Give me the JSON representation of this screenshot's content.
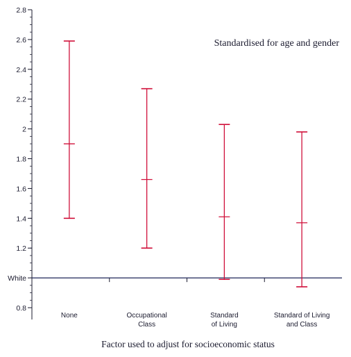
{
  "chart_data": {
    "type": "errorbar",
    "title": "",
    "annotation": "Standardised for age and gender",
    "xlabel": "Factor used to adjust for socioeconomic status",
    "ylabel": "",
    "ylim": [
      0.8,
      2.8
    ],
    "y_ticks": [
      {
        "value": 0.8,
        "label": "0.8"
      },
      {
        "value": 1.0,
        "label": "White"
      },
      {
        "value": 1.2,
        "label": "1.2"
      },
      {
        "value": 1.4,
        "label": "1.4"
      },
      {
        "value": 1.6,
        "label": "1.6"
      },
      {
        "value": 1.8,
        "label": "1.8"
      },
      {
        "value": 2.0,
        "label": "2"
      },
      {
        "value": 2.2,
        "label": "2.2"
      },
      {
        "value": 2.4,
        "label": "2.4"
      },
      {
        "value": 2.6,
        "label": "2.6"
      },
      {
        "value": 2.8,
        "label": "2.8"
      }
    ],
    "reference_line": {
      "value": 1.0,
      "label": "White"
    },
    "categories": [
      {
        "label_lines": [
          "None"
        ],
        "estimate": 1.9,
        "lower": 1.4,
        "upper": 2.59
      },
      {
        "label_lines": [
          "Occupational",
          "Class"
        ],
        "estimate": 1.66,
        "lower": 1.2,
        "upper": 2.27
      },
      {
        "label_lines": [
          "Standard",
          "of Living"
        ],
        "estimate": 1.41,
        "lower": 0.99,
        "upper": 2.03
      },
      {
        "label_lines": [
          "Standard of Living",
          "and Class"
        ],
        "estimate": 1.37,
        "lower": 0.94,
        "upper": 1.98
      }
    ],
    "colors": {
      "error_bar": "#d0103a",
      "axis": "#1a1a2e",
      "reference_line": "#1c2457"
    }
  }
}
